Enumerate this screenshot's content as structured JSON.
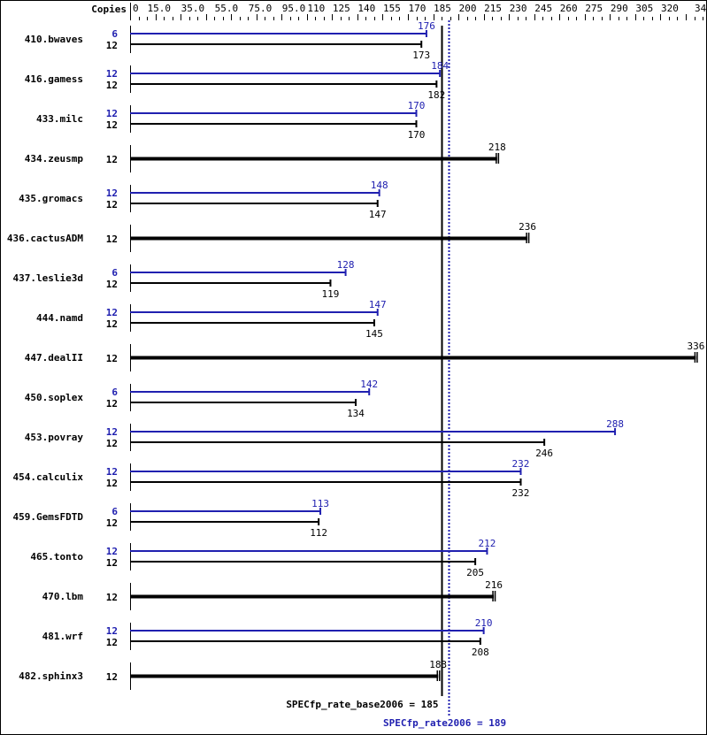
{
  "chart_data": {
    "type": "bar",
    "orientation": "horizontal",
    "header_label": "Copies",
    "xlim": [
      0,
      340
    ],
    "tick_labels": [
      "0",
      "15.0",
      "35.0",
      "55.0",
      "75.0",
      "95.0",
      "110",
      "125",
      "140",
      "155",
      "170",
      "185",
      "200",
      "215",
      "230",
      "245",
      "260",
      "275",
      "290",
      "305",
      "320",
      "340"
    ],
    "colors": {
      "base": "#000000",
      "peak": "#2020b0"
    },
    "rows": [
      {
        "name": "410.bwaves",
        "peak_copies": "6",
        "peak": 176,
        "base_copies": "12",
        "base": 173
      },
      {
        "name": "416.gamess",
        "peak_copies": "12",
        "peak": 184,
        "base_copies": "12",
        "base": 182
      },
      {
        "name": "433.milc",
        "peak_copies": "12",
        "peak": 170,
        "base_copies": "12",
        "base": 170
      },
      {
        "name": "434.zeusmp",
        "base_copies": "12",
        "base": 218
      },
      {
        "name": "435.gromacs",
        "peak_copies": "12",
        "peak": 148,
        "base_copies": "12",
        "base": 147
      },
      {
        "name": "436.cactusADM",
        "base_copies": "12",
        "base": 236
      },
      {
        "name": "437.leslie3d",
        "peak_copies": "6",
        "peak": 128,
        "base_copies": "12",
        "base": 119
      },
      {
        "name": "444.namd",
        "peak_copies": "12",
        "peak": 147,
        "base_copies": "12",
        "base": 145
      },
      {
        "name": "447.dealII",
        "base_copies": "12",
        "base": 336
      },
      {
        "name": "450.soplex",
        "peak_copies": "6",
        "peak": 142,
        "base_copies": "12",
        "base": 134
      },
      {
        "name": "453.povray",
        "peak_copies": "12",
        "peak": 288,
        "base_copies": "12",
        "base": 246
      },
      {
        "name": "454.calculix",
        "peak_copies": "12",
        "peak": 232,
        "base_copies": "12",
        "base": 232
      },
      {
        "name": "459.GemsFDTD",
        "peak_copies": "6",
        "peak": 113,
        "base_copies": "12",
        "base": 112
      },
      {
        "name": "465.tonto",
        "peak_copies": "12",
        "peak": 212,
        "base_copies": "12",
        "base": 205
      },
      {
        "name": "470.lbm",
        "base_copies": "12",
        "base": 216
      },
      {
        "name": "481.wrf",
        "peak_copies": "12",
        "peak": 210,
        "base_copies": "12",
        "base": 208
      },
      {
        "name": "482.sphinx3",
        "base_copies": "12",
        "base": 183
      }
    ],
    "summary": {
      "base_label": "SPECfp_rate_base2006 = 185",
      "base_value": 185,
      "peak_label": "SPECfp_rate2006 = 189",
      "peak_value": 189
    }
  }
}
